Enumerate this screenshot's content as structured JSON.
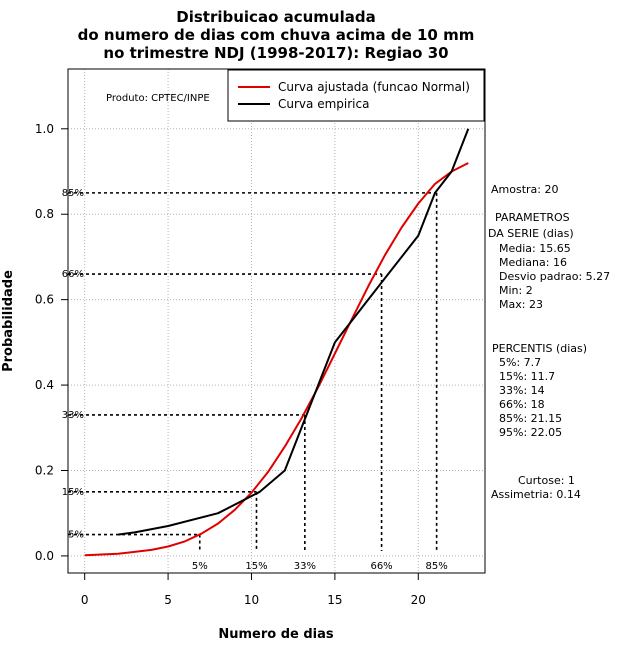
{
  "chart_data": {
    "type": "line",
    "title": [
      "Distribuicao acumulada",
      "do numero de dias com chuva acima de 10 mm",
      "no trimestre NDJ (1998-2017): Regiao 30"
    ],
    "xlabel": "Numero de dias",
    "ylabel": "Probabilidade",
    "xlim": [
      -1,
      24
    ],
    "ylim": [
      -0.04,
      1.14
    ],
    "x_ticks": [
      0,
      5,
      10,
      15,
      20
    ],
    "y_ticks": [
      0.0,
      0.2,
      0.4,
      0.6,
      0.8,
      1.0
    ],
    "y_tick_labels": [
      "0.0",
      "0.2",
      "0.4",
      "0.6",
      "0.8",
      "1.0"
    ],
    "grid": true,
    "product_label": "Produto: CPTEC/INPE",
    "legend": [
      {
        "label": "Curva ajustada (funcao Normal)",
        "color": "#e00000"
      },
      {
        "label": "Curva empirica",
        "color": "#000000"
      }
    ],
    "series": [
      {
        "name": "Curva ajustada (funcao Normal)",
        "color": "#e00000",
        "x": [
          0,
          2,
          4,
          5,
          6,
          7,
          8,
          9,
          10,
          11,
          12,
          13,
          14,
          15,
          16,
          17,
          18,
          19,
          20,
          21,
          22,
          23
        ],
        "y": [
          0.0015,
          0.005,
          0.014,
          0.022,
          0.034,
          0.052,
          0.076,
          0.108,
          0.148,
          0.197,
          0.256,
          0.322,
          0.395,
          0.474,
          0.553,
          0.631,
          0.704,
          0.769,
          0.825,
          0.871,
          0.9,
          0.92
        ]
      },
      {
        "name": "Curva empirica",
        "color": "#000000",
        "x": [
          2,
          3,
          5,
          8,
          10.5,
          12,
          13,
          14,
          15,
          16,
          17,
          18,
          20,
          21,
          22,
          23
        ],
        "y": [
          0.05,
          0.055,
          0.07,
          0.1,
          0.15,
          0.2,
          0.3,
          0.4,
          0.5,
          0.55,
          0.6,
          0.65,
          0.75,
          0.85,
          0.9,
          1.0
        ]
      }
    ],
    "percentile_markers": [
      {
        "label": "5%",
        "y_label": "5%",
        "x": 6.9,
        "p": 0.05
      },
      {
        "label": "15%",
        "y_label": "15%",
        "x": 10.3,
        "p": 0.15
      },
      {
        "label": "33%",
        "y_label": "33%",
        "x": 13.2,
        "p": 0.33
      },
      {
        "label": "66%",
        "y_label": "66%",
        "x": 17.8,
        "p": 0.66
      },
      {
        "label": "85%",
        "y_label": "85%",
        "x": 21.1,
        "p": 0.85
      }
    ]
  },
  "side_panel": {
    "amostra": "Amostra: 20",
    "param_lines": [
      "PARAMETROS",
      "DA SERIE (dias)",
      "Media: 15.65",
      "Mediana: 16",
      "Desvio padrao: 5.27",
      "Min: 2",
      "Max: 23"
    ],
    "percentis_lines": [
      "PERCENTIS (dias)",
      "5%: 7.7",
      "15%: 11.7",
      "33%: 14",
      "66%: 18",
      "85%: 21.15",
      "95%: 22.05"
    ],
    "curtose": "Curtose: 1",
    "assimetria": "Assimetria: 0.14"
  }
}
